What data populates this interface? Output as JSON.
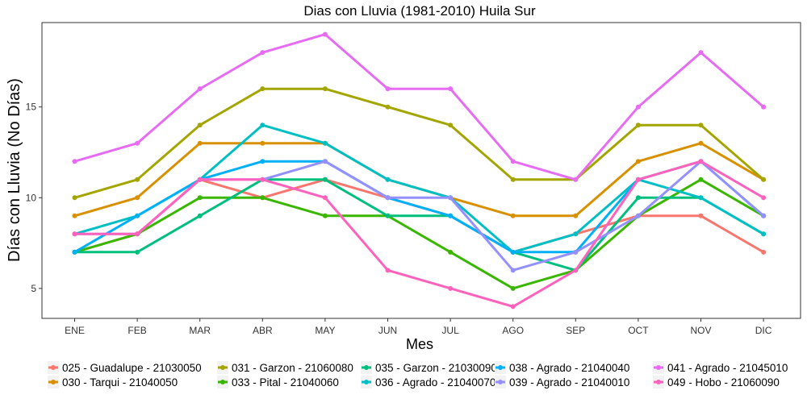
{
  "chart_data": {
    "type": "line",
    "title": "Dias con Lluvia (1981-2010)  Huila Sur",
    "xlabel": "Mes",
    "ylabel": "Días con Lluvia (No Días)",
    "categories": [
      "ENE",
      "FEB",
      "MAR",
      "ABR",
      "MAY",
      "JUN",
      "JUL",
      "AGO",
      "SEP",
      "OCT",
      "NOV",
      "DIC"
    ],
    "yticks": [
      5,
      10,
      15
    ],
    "ylim": [
      3.35,
      19.65
    ],
    "grid": false,
    "legend_position": "bottom",
    "series": [
      {
        "name": "025 - Guadalupe - 21030050",
        "color": "#F8766D",
        "values": [
          7,
          8,
          11,
          10,
          11,
          10,
          9,
          7,
          8,
          9,
          9,
          7
        ]
      },
      {
        "name": "030 - Tarqui - 21040050",
        "color": "#D89000",
        "values": [
          9,
          10,
          13,
          13,
          13,
          11,
          10,
          9,
          9,
          12,
          13,
          11
        ]
      },
      {
        "name": "031 - Garzon - 21060080",
        "color": "#A3A500",
        "values": [
          10,
          11,
          14,
          16,
          16,
          15,
          14,
          11,
          11,
          14,
          14,
          11
        ]
      },
      {
        "name": "033 - Pital - 21040060",
        "color": "#39B600",
        "values": [
          7,
          8,
          10,
          10,
          9,
          9,
          7,
          5,
          6,
          9,
          11,
          9
        ]
      },
      {
        "name": "035 - Garzon - 21030090",
        "color": "#00BF7D",
        "values": [
          7,
          7,
          9,
          11,
          11,
          9,
          9,
          7,
          6,
          10,
          10,
          8
        ]
      },
      {
        "name": "036 - Agrado - 21040070",
        "color": "#00BFC4",
        "values": [
          8,
          9,
          11,
          14,
          13,
          11,
          10,
          7,
          8,
          11,
          10,
          8
        ]
      },
      {
        "name": "038 - Agrado - 21040040",
        "color": "#00B0F6",
        "values": [
          7,
          9,
          11,
          12,
          12,
          10,
          9,
          7,
          7,
          11,
          12,
          9
        ]
      },
      {
        "name": "039 - Agrado - 21040010",
        "color": "#9590FF",
        "values": [
          8,
          8,
          11,
          11,
          12,
          10,
          10,
          6,
          7,
          9,
          12,
          9
        ]
      },
      {
        "name": "041 - Agrado - 21045010",
        "color": "#E76BF3",
        "values": [
          12,
          13,
          16,
          18,
          19,
          16,
          16,
          12,
          11,
          15,
          18,
          15
        ]
      },
      {
        "name": "049 - Hobo - 21060090",
        "color": "#FF62BC",
        "values": [
          8,
          8,
          11,
          11,
          10,
          6,
          5,
          4,
          6,
          11,
          12,
          10
        ]
      }
    ]
  }
}
